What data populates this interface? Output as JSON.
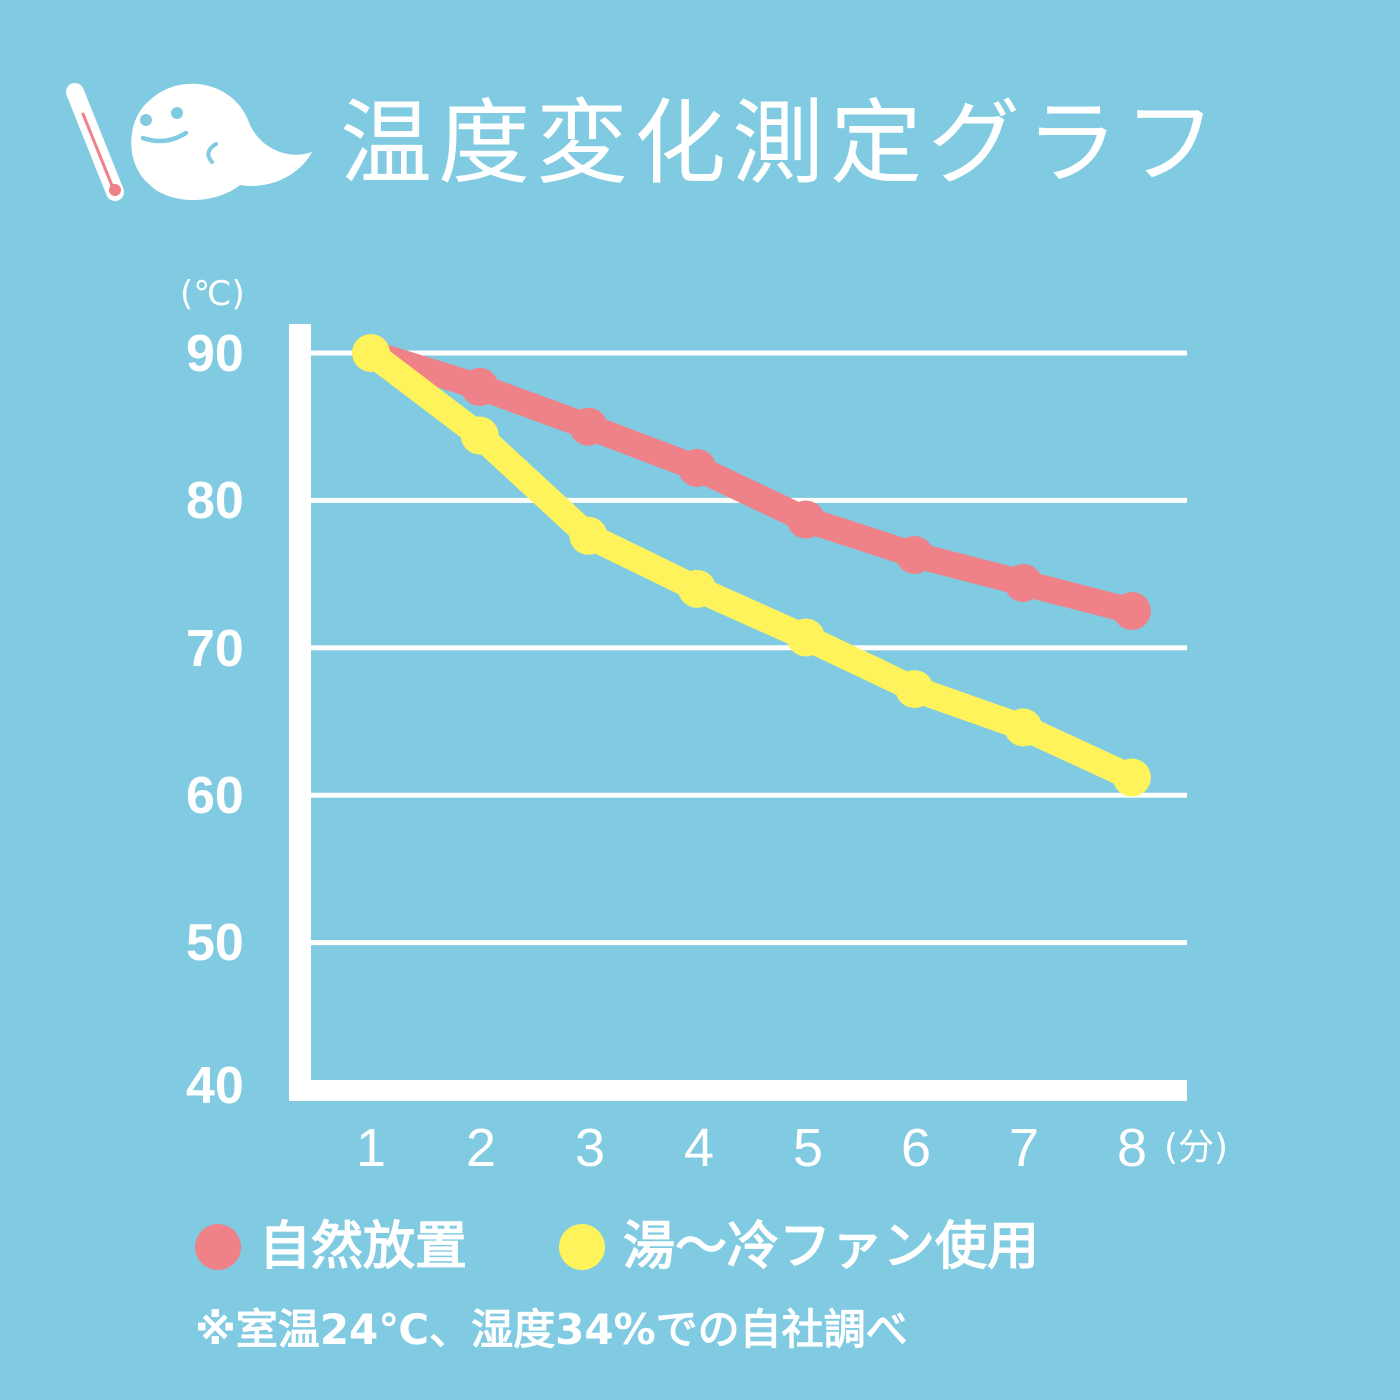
{
  "header": {
    "title": "温度変化測定グラフ",
    "mascot_icon": "ghost-with-thermometer-icon"
  },
  "colors": {
    "background": "#80CBE2",
    "natural": "#EF8189",
    "fan": "#FFF35C",
    "axis": "#FFFFFF"
  },
  "axes": {
    "y_unit": "(℃)",
    "x_unit": "(分)",
    "y_ticks": [
      "90",
      "80",
      "70",
      "60",
      "50",
      "40"
    ],
    "x_ticks": [
      "1",
      "2",
      "3",
      "4",
      "5",
      "6",
      "7",
      "8"
    ]
  },
  "legend": {
    "items": [
      {
        "label": "自然放置",
        "color": "#EF8189"
      },
      {
        "label": "湯〜冷ファン使用",
        "color": "#FFF35C"
      }
    ]
  },
  "note": "※室温24℃、湿度34%での自社調べ",
  "chart_data": {
    "type": "line",
    "title": "温度変化測定グラフ",
    "xlabel": "(分)",
    "ylabel": "(℃)",
    "x": [
      1,
      2,
      3,
      4,
      5,
      6,
      7,
      8
    ],
    "ylim": [
      40,
      90
    ],
    "yticks": [
      40,
      50,
      60,
      70,
      80,
      90
    ],
    "grid": true,
    "legend_position": "bottom",
    "series": [
      {
        "name": "自然放置",
        "color": "#EF8189",
        "values": [
          90,
          87.7,
          85.0,
          82.2,
          78.7,
          76.3,
          74.4,
          72.5
        ]
      },
      {
        "name": "湯〜冷ファン使用",
        "color": "#FFF35C",
        "values": [
          90,
          84.4,
          77.6,
          74.0,
          70.7,
          67.2,
          64.6,
          61.2
        ]
      }
    ]
  }
}
